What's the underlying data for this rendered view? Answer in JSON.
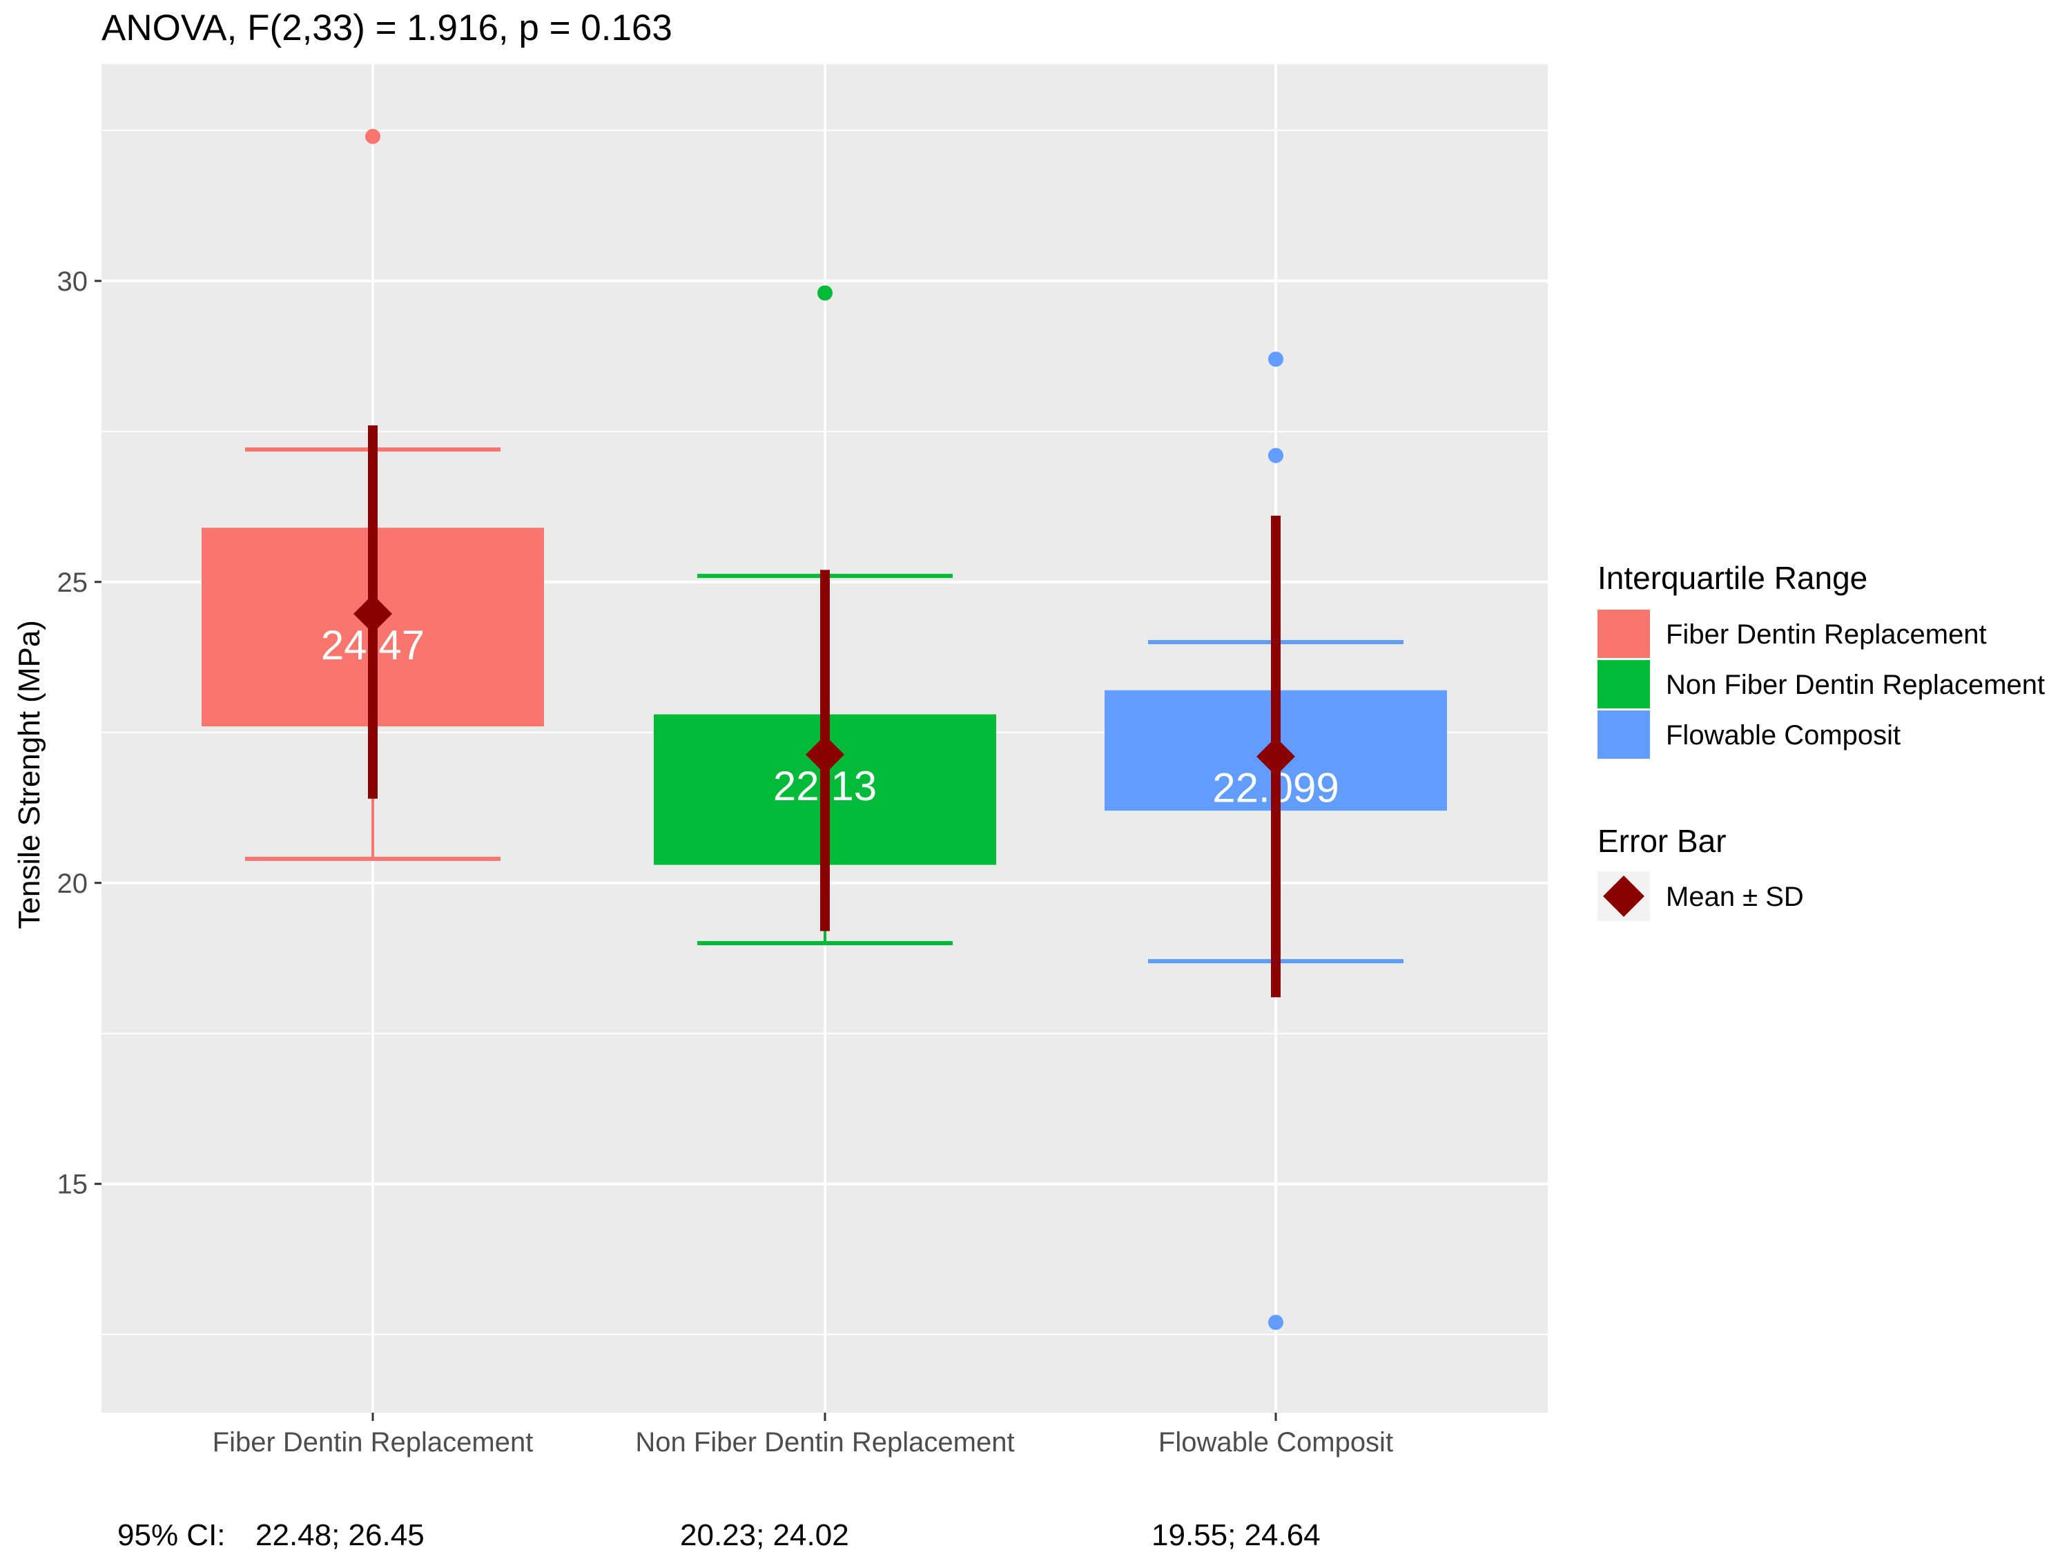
{
  "chart_data": {
    "type": "boxplot",
    "title": "ANOVA, F(2,33) = 1.916, p = 0.163",
    "xlabel": "",
    "ylabel": "Tensile Strenght (MPa)",
    "ylim": [
      11.2,
      33.6
    ],
    "yticks": [
      15,
      20,
      25,
      30
    ],
    "grid": true,
    "legend_position": "right",
    "categories": [
      "Fiber Dentin Replacement",
      "Non Fiber Dentin Replacement",
      "Flowable Composit"
    ],
    "boxes": [
      {
        "category": "Fiber Dentin Replacement",
        "color": "#F8766D",
        "whisker_low": 20.4,
        "q1": 22.6,
        "q3": 25.9,
        "whisker_high": 27.2,
        "outliers": [
          32.4
        ],
        "mean": 24.47,
        "mean_label": "24.47",
        "sd_low": 21.4,
        "sd_high": 27.6,
        "ci_label": "22.48; 26.45"
      },
      {
        "category": "Non Fiber Dentin Replacement",
        "color": "#00BA38",
        "whisker_low": 19.0,
        "q1": 20.3,
        "q3": 22.8,
        "whisker_high": 25.1,
        "outliers": [
          29.8
        ],
        "mean": 22.13,
        "mean_label": "22.13",
        "sd_low": 19.2,
        "sd_high": 25.2,
        "ci_label": "20.23; 24.02"
      },
      {
        "category": "Flowable Composit",
        "color": "#619CFF",
        "whisker_low": 18.7,
        "q1": 21.2,
        "q3": 23.2,
        "whisker_high": 24.0,
        "outliers": [
          28.7,
          27.1,
          12.7
        ],
        "mean": 22.099,
        "mean_label": "22.099",
        "sd_low": 18.1,
        "sd_high": 26.1,
        "ci_label": "19.55; 24.64"
      }
    ],
    "mean_color": "#8B0000",
    "ci_prefix": "95% CI:",
    "legend": {
      "box_title": "Interquartile Range",
      "box_entries": [
        "Fiber Dentin Replacement",
        "Non Fiber Dentin Replacement",
        "Flowable Composit"
      ],
      "error_title": "Error Bar",
      "error_entry": "Mean  ± SD"
    }
  }
}
